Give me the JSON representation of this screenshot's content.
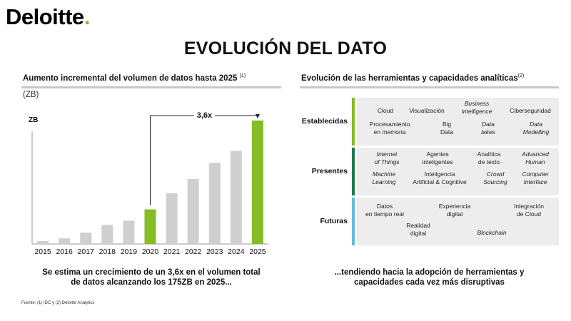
{
  "brand": {
    "name": "Deloitte",
    "dot": ".",
    "accent": "#86BC25"
  },
  "title": "EVOLUCIÓN DEL DATO",
  "left": {
    "section_title": "Aumento incremental del volumen de datos hasta 2025",
    "section_sup": "(1)",
    "unit": "(ZB)",
    "caption_line1": "Se estima un crecimiento de un 3,6x en el volumen total",
    "caption_line2": "de datos alcanzando los 175ZB en 2025..."
  },
  "chart_data": {
    "type": "bar",
    "ylabel": "ZB",
    "categories": [
      "2015",
      "2016",
      "2017",
      "2018",
      "2019",
      "2020",
      "2021",
      "2022",
      "2023",
      "2024",
      "2025"
    ],
    "values": [
      4,
      8,
      16,
      27,
      33,
      49,
      72,
      92,
      115,
      132,
      175
    ],
    "ylim": [
      0,
      180
    ],
    "highlight": [
      "2020",
      "2025"
    ],
    "colors": {
      "default": "#cfcfcf",
      "highlight": "#86BC25"
    },
    "annotation": {
      "text": "3,6x",
      "from": "2020",
      "to": "2025"
    }
  },
  "right": {
    "section_title": "Evolución de las herramientas y capacidades analíticas",
    "section_sup": "(2)",
    "caption_line1": "...tendiendo hacia la adopción de herramientas y",
    "caption_line2": "capacidades cada vez más disruptivas",
    "rows": [
      {
        "label": "Establecidas",
        "color": "#86BC25",
        "items": [
          {
            "l1": "Cloud",
            "l2": "",
            "italic": false
          },
          {
            "l1": "Visualización",
            "l2": "",
            "italic": false
          },
          {
            "l1": "Business",
            "l2": "Intelligence",
            "italic": true
          },
          {
            "l1": "Ciberseguridad",
            "l2": "",
            "italic": false
          },
          {
            "l1": "Procesamiento",
            "l2": "en memoria",
            "italic": false
          },
          {
            "l1": "Big",
            "l2": "Data",
            "italic": false
          },
          {
            "l1": "Data",
            "l2": "lakes",
            "italic": true
          },
          {
            "l1": "Data",
            "l2": "Modelling",
            "italic": true
          }
        ]
      },
      {
        "label": "Presentes",
        "color": "#1f7a4a",
        "items": [
          {
            "l1": "Internet",
            "l2": "of Things",
            "italic": true
          },
          {
            "l1": "Agentes",
            "l2": "inteligentes",
            "italic": false
          },
          {
            "l1": "Analítica",
            "l2": "de texto",
            "italic": false
          },
          {
            "l1": "Advanced",
            "l2": "Human",
            "italic": true
          },
          {
            "l1": "Machine",
            "l2": "Learning",
            "italic": true
          },
          {
            "l1": "Inteligencia",
            "l2": "Artificial & Cognitive",
            "italic": false
          },
          {
            "l1": "Crowd",
            "l2": "Sourcing",
            "italic": true
          },
          {
            "l1": "Computer",
            "l2": "Interface",
            "italic": true
          }
        ]
      },
      {
        "label": "Futuras",
        "color": "#6ab8dc",
        "items": [
          {
            "l1": "Datos",
            "l2": "en tiempo real",
            "italic": false
          },
          {
            "l1": "Experiencia",
            "l2": "digital",
            "italic": false
          },
          {
            "l1": "Integración",
            "l2": "de Cloud",
            "italic": false
          },
          {
            "l1": "Realidad",
            "l2": "digital",
            "italic": false
          },
          {
            "l1": "Blockchain",
            "l2": "",
            "italic": true
          }
        ]
      }
    ]
  },
  "source": "Fuente: (1) IDC y (2) Deloitte Analytics"
}
